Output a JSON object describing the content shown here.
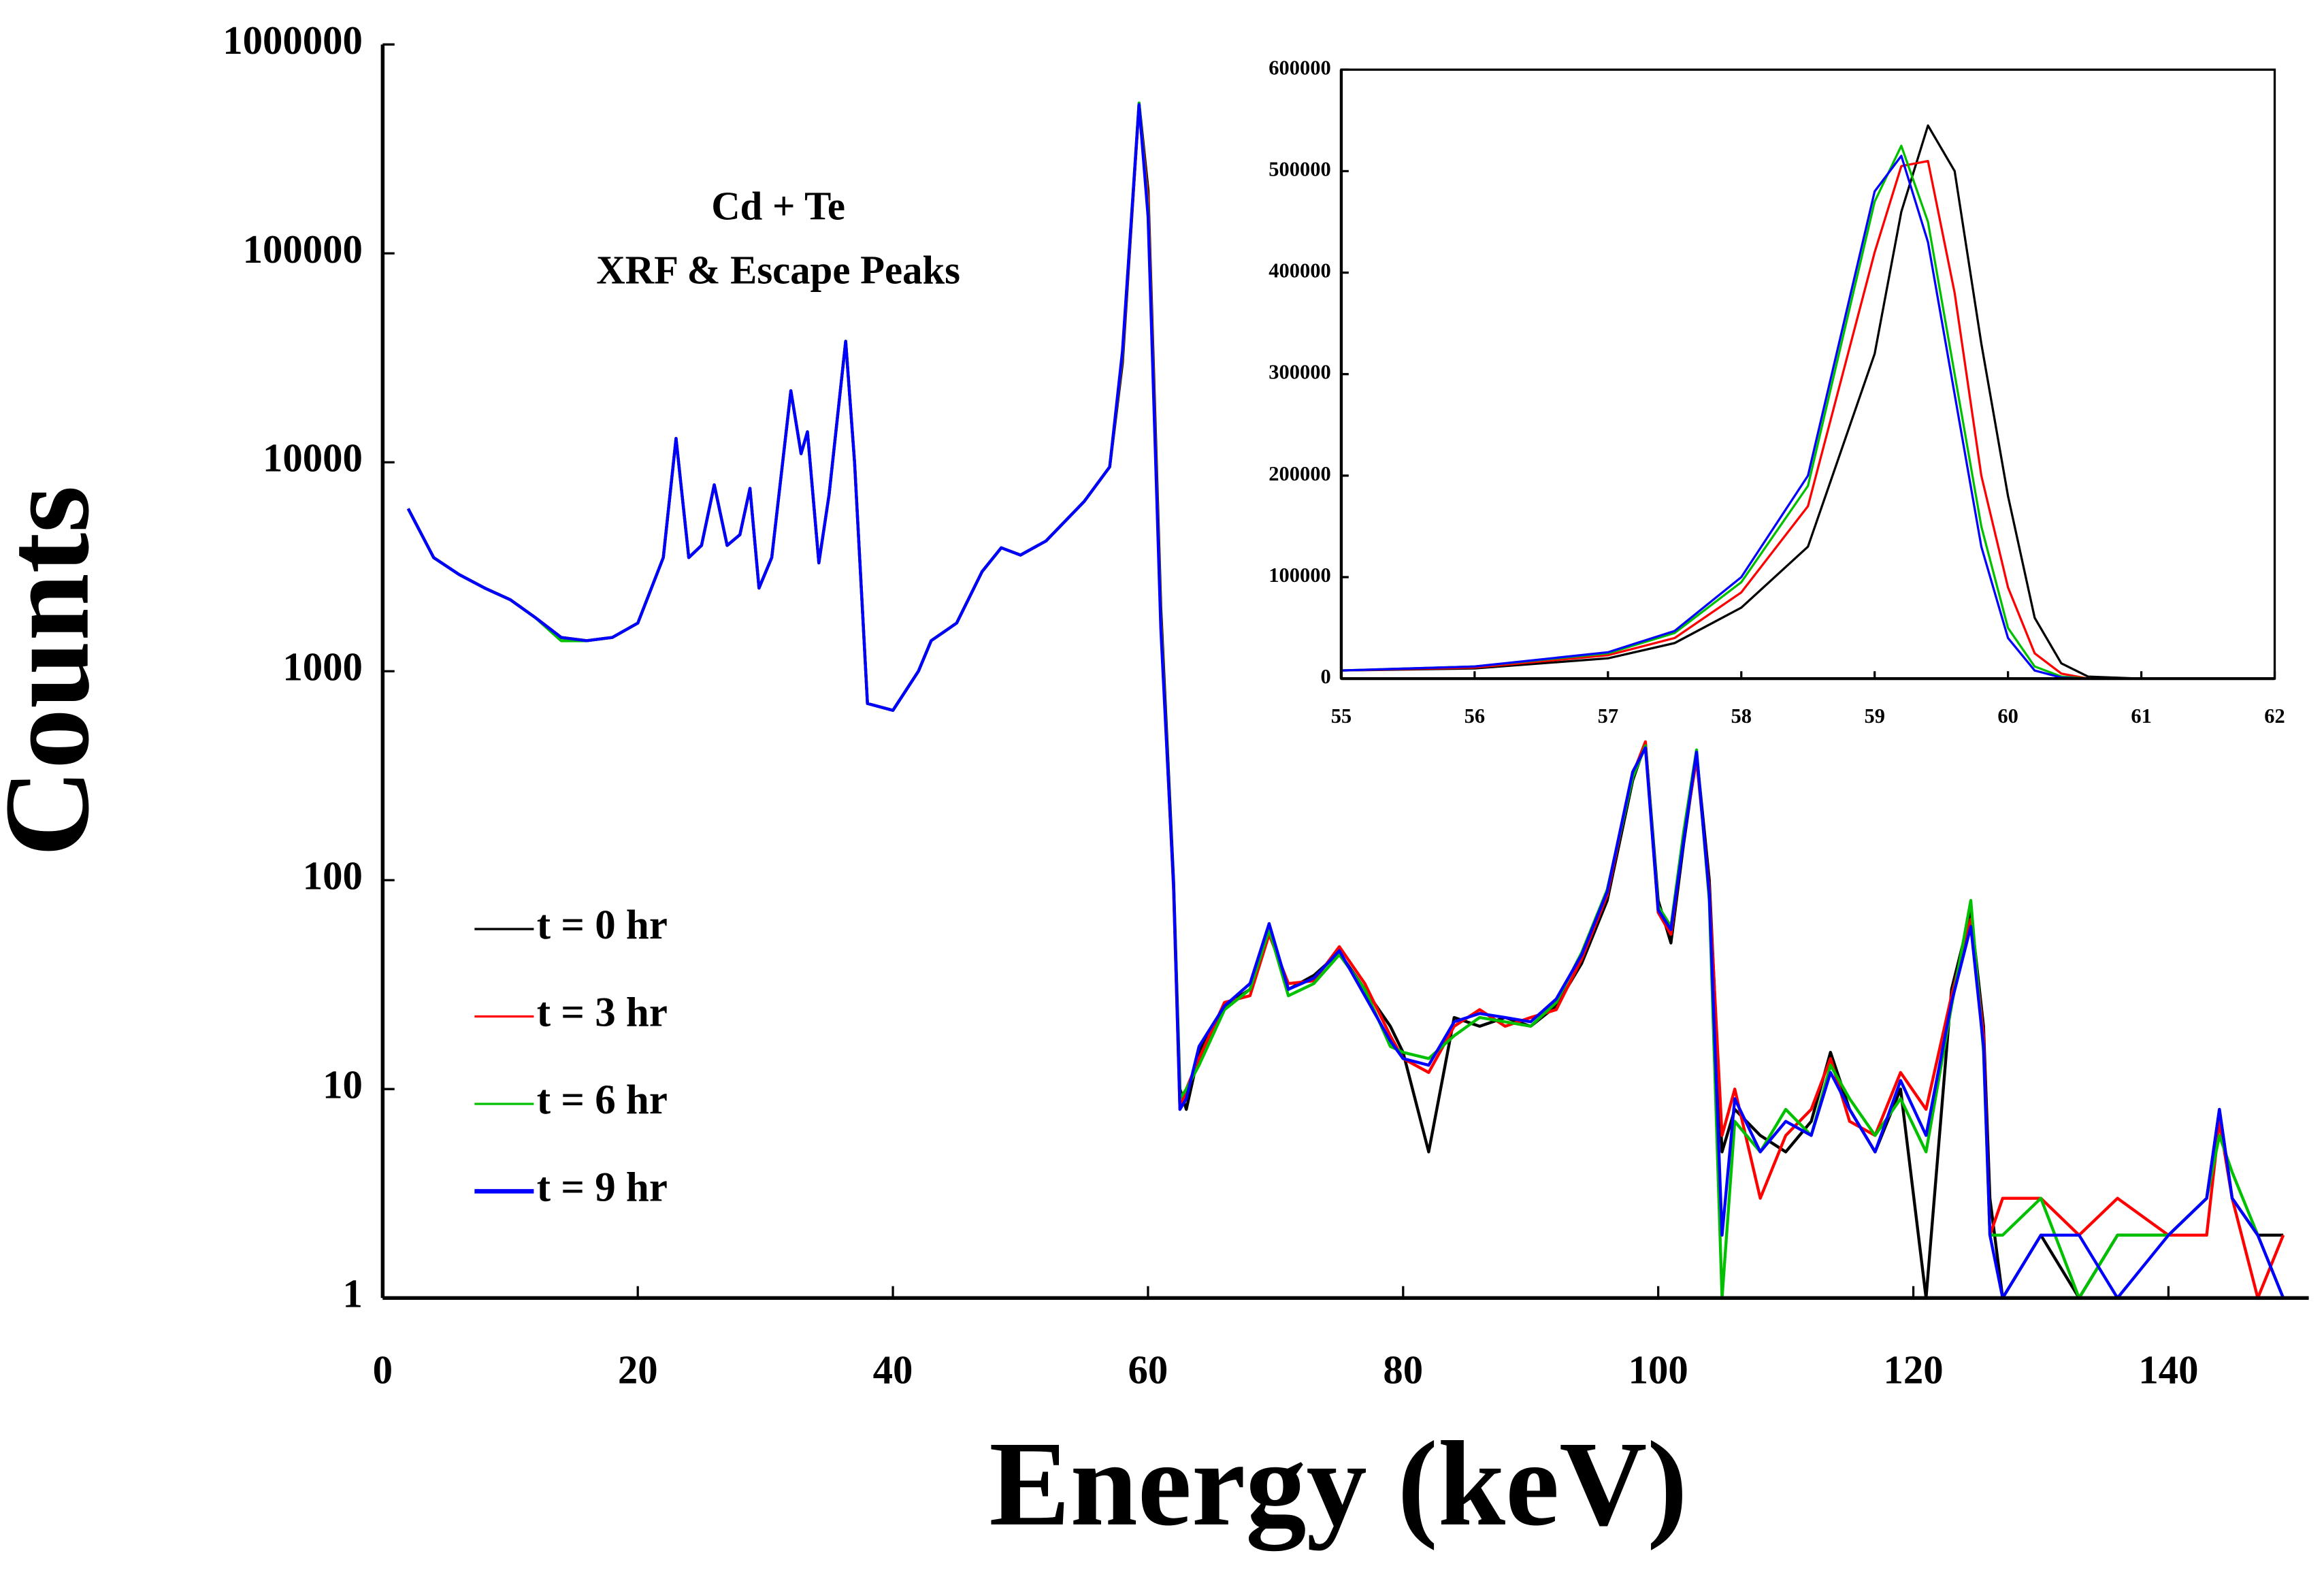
{
  "chart_data": [
    {
      "type": "line",
      "log": true,
      "grid": false,
      "legend": "lower left",
      "xlabel": "Energy (keV)",
      "ylabel": "Counts",
      "annotation": [
        "Cd + Te",
        "XRF & Escape Peaks"
      ],
      "xlim": [
        0,
        151
      ],
      "xticks": [
        0,
        20,
        40,
        60,
        80,
        100,
        120,
        140
      ],
      "ylim": [
        1,
        1000000
      ],
      "yticks": [
        1,
        10,
        100,
        1000,
        10000,
        100000,
        1000000
      ],
      "x": [
        2,
        4,
        6,
        8,
        10,
        12,
        14,
        16,
        18,
        20,
        22,
        23,
        24,
        25,
        26,
        27,
        28,
        28.8,
        29.5,
        30.5,
        32,
        32.8,
        33.3,
        34.2,
        35,
        36.3,
        37,
        38,
        40,
        42,
        43,
        45,
        47,
        48.5,
        50,
        52,
        55,
        57,
        58,
        59.3,
        60,
        61,
        62,
        62.5,
        63,
        64,
        66,
        68,
        69.5,
        71,
        73,
        75,
        77,
        79,
        80,
        82,
        84,
        86,
        88,
        90,
        92,
        94,
        96,
        98,
        99,
        100,
        101,
        102,
        103,
        104,
        105,
        106,
        108,
        110,
        112,
        113.5,
        115,
        117,
        119,
        121,
        123,
        124.5,
        125.5,
        126,
        127,
        130,
        133,
        136,
        140,
        143,
        144,
        145,
        147,
        149
      ],
      "series": [
        {
          "name": "t = 0 hr",
          "color": "#000000",
          "values": [
            6000,
            3500,
            2900,
            2500,
            2200,
            1800,
            1450,
            1400,
            1450,
            1700,
            3500,
            13000,
            3500,
            4000,
            7800,
            4000,
            4500,
            7500,
            2500,
            3500,
            22000,
            11000,
            14000,
            3300,
            7000,
            38000,
            10000,
            700,
            650,
            1000,
            1400,
            1700,
            3000,
            3900,
            3600,
            4200,
            6500,
            9500,
            30000,
            520000,
            200000,
            2000,
            100,
            10,
            8,
            15,
            25,
            30,
            60,
            30,
            35,
            45,
            30,
            20,
            15,
            5,
            22,
            20,
            22,
            20,
            25,
            40,
            80,
            300,
            450,
            80,
            50,
            150,
            400,
            100,
            5,
            8,
            6,
            5,
            7,
            15,
            8,
            5,
            10,
            1,
            30,
            70,
            20,
            3,
            1,
            2,
            1,
            2,
            2,
            3,
            8,
            3,
            2,
            2
          ]
        },
        {
          "name": "t = 3 hr",
          "color": "#ff0000",
          "values": [
            6000,
            3500,
            2900,
            2500,
            2200,
            1800,
            1450,
            1400,
            1450,
            1700,
            3500,
            13000,
            3500,
            4000,
            7800,
            4000,
            4500,
            7500,
            2500,
            3500,
            22000,
            11000,
            14000,
            3300,
            7000,
            38000,
            10000,
            700,
            650,
            1000,
            1400,
            1700,
            3000,
            3900,
            3600,
            4200,
            6500,
            9500,
            32000,
            510000,
            180000,
            1800,
            90,
            8,
            10,
            14,
            26,
            28,
            55,
            32,
            33,
            48,
            32,
            18,
            14,
            12,
            20,
            24,
            20,
            22,
            24,
            42,
            85,
            320,
            460,
            70,
            55,
            160,
            380,
            90,
            6,
            10,
            3,
            6,
            8,
            14,
            7,
            6,
            12,
            8,
            28,
            65,
            18,
            2,
            3,
            3,
            2,
            3,
            2,
            2,
            7,
            3,
            1,
            2
          ]
        },
        {
          "name": "t = 6 hr",
          "color": "#00c000",
          "values": [
            6000,
            3500,
            2900,
            2500,
            2200,
            1800,
            1400,
            1400,
            1450,
            1700,
            3500,
            13000,
            3500,
            4000,
            7800,
            4000,
            4500,
            7500,
            2500,
            3500,
            22000,
            11000,
            14000,
            3300,
            7000,
            38000,
            10000,
            700,
            650,
            1000,
            1400,
            1700,
            3000,
            3900,
            3600,
            4200,
            6500,
            9500,
            33000,
            525000,
            160000,
            1700,
            95,
            9,
            10,
            13,
            24,
            30,
            58,
            28,
            32,
            44,
            30,
            16,
            15,
            14,
            18,
            22,
            21,
            20,
            26,
            45,
            90,
            310,
            440,
            75,
            60,
            170,
            420,
            80,
            1,
            7,
            5,
            8,
            6,
            13,
            9,
            6,
            9,
            5,
            25,
            80,
            15,
            2,
            2,
            3,
            1,
            2,
            2,
            3,
            6,
            4,
            2,
            1
          ]
        },
        {
          "name": "t = 9 hr",
          "color": "#0000ff",
          "values": [
            6000,
            3500,
            2900,
            2500,
            2200,
            1800,
            1450,
            1400,
            1450,
            1700,
            3500,
            13000,
            3500,
            4000,
            7800,
            4000,
            4500,
            7500,
            2500,
            3500,
            22000,
            11000,
            14000,
            3300,
            7000,
            38000,
            10000,
            700,
            650,
            1000,
            1400,
            1700,
            3000,
            3900,
            3600,
            4200,
            6500,
            9500,
            34000,
            515000,
            150000,
            1600,
            95,
            8,
            9,
            16,
            25,
            32,
            62,
            30,
            34,
            46,
            28,
            17,
            14,
            13,
            21,
            23,
            22,
            21,
            27,
            44,
            88,
            330,
            430,
            72,
            58,
            155,
            410,
            85,
            2,
            9,
            5,
            7,
            6,
            12,
            8,
            5,
            11,
            6,
            26,
            60,
            16,
            2,
            1,
            2,
            2,
            1,
            2,
            3,
            8,
            3,
            2,
            1
          ]
        }
      ]
    },
    {
      "type": "line",
      "log": false,
      "grid": false,
      "xlim": [
        55,
        62
      ],
      "xticks": [
        55,
        56,
        57,
        58,
        59,
        60,
        61,
        62
      ],
      "ylim": [
        0,
        600000
      ],
      "yticks": [
        0,
        100000,
        200000,
        300000,
        400000,
        500000,
        600000
      ],
      "x": [
        55,
        56,
        57,
        57.5,
        58,
        58.5,
        59,
        59.2,
        59.4,
        59.6,
        59.8,
        60,
        60.2,
        60.4,
        60.6,
        61,
        62
      ],
      "series": [
        {
          "color": "#000000",
          "values": [
            8000,
            10000,
            20000,
            35000,
            70000,
            130000,
            320000,
            460000,
            545000,
            500000,
            330000,
            180000,
            60000,
            15000,
            2000,
            0,
            0
          ]
        },
        {
          "color": "#ff0000",
          "values": [
            8000,
            11000,
            23000,
            40000,
            85000,
            170000,
            420000,
            505000,
            510000,
            380000,
            200000,
            90000,
            25000,
            5000,
            0,
            0,
            0
          ]
        },
        {
          "color": "#00c000",
          "values": [
            8000,
            12000,
            25000,
            45000,
            95000,
            190000,
            470000,
            525000,
            450000,
            300000,
            150000,
            50000,
            12000,
            2000,
            0,
            0,
            0
          ]
        },
        {
          "color": "#0000ff",
          "values": [
            8000,
            12000,
            26000,
            47000,
            100000,
            200000,
            480000,
            515000,
            430000,
            280000,
            130000,
            40000,
            8000,
            1000,
            0,
            0,
            0
          ]
        }
      ]
    }
  ]
}
